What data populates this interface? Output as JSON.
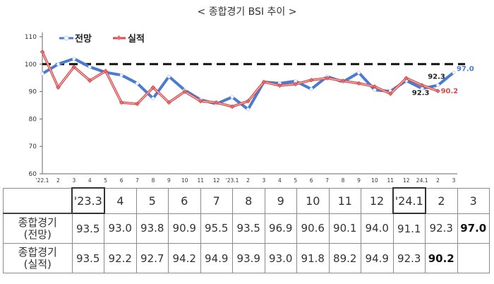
{
  "title": "< 종합경기 BSI 추이 >",
  "chart_data": {
    "type": "line",
    "legend": {
      "placement": "top-left",
      "items": [
        "전망",
        "실적"
      ]
    },
    "yticks": [
      "110",
      "100",
      "90",
      "80",
      "70",
      "60"
    ],
    "ylim": [
      60,
      110
    ],
    "reference_line": 100,
    "x_labels": [
      "'22.1",
      "2",
      "3",
      "4",
      "5",
      "6",
      "7",
      "8",
      "9",
      "10",
      "11",
      "12",
      "'23.1",
      "2",
      "3",
      "4",
      "5",
      "6",
      "7",
      "8",
      "9",
      "10",
      "11",
      "12",
      "24.1",
      "2",
      "3"
    ],
    "series": [
      {
        "name": "전망",
        "color": "#4a7bd0",
        "values": [
          96.5,
          100.0,
          102.0,
          99.0,
          97.0,
          96.0,
          93.0,
          87.5,
          95.5,
          90.5,
          87.0,
          85.5,
          88.0,
          83.5,
          93.5,
          93.0,
          93.8,
          90.9,
          95.5,
          93.5,
          96.9,
          90.6,
          90.1,
          94.0,
          91.1,
          92.3,
          97.0
        ]
      },
      {
        "name": "실적",
        "color": "#d94a4a",
        "values": [
          104.5,
          91.5,
          99.0,
          94.0,
          97.5,
          86.0,
          85.5,
          91.5,
          86.0,
          90.0,
          86.5,
          86.0,
          84.5,
          86.5,
          93.5,
          92.2,
          92.7,
          94.2,
          94.9,
          93.9,
          93.0,
          91.8,
          89.2,
          94.9,
          92.3,
          90.2
        ]
      }
    ],
    "data_labels": [
      {
        "text": "97.0",
        "series": "전망",
        "index": 26,
        "color": "#4a7bd0"
      },
      {
        "text": "92.3",
        "series": "전망",
        "index": 25,
        "color": "#222222"
      },
      {
        "text": "92.3",
        "series": "실적",
        "index": 24,
        "color": "#222222"
      },
      {
        "text": "90.2",
        "series": "실적",
        "index": 25,
        "color": "#d94a4a"
      }
    ]
  },
  "table": {
    "header": [
      "'23.3",
      "4",
      "5",
      "6",
      "7",
      "8",
      "9",
      "10",
      "11",
      "12",
      "'24.1",
      "2",
      "3"
    ],
    "rows": [
      {
        "label_line1": "종합경기",
        "label_line2": "(전망)",
        "values": [
          "93.5",
          "93.0",
          "93.8",
          "90.9",
          "95.5",
          "93.5",
          "96.9",
          "90.6",
          "90.1",
          "94.0",
          "91.1",
          "92.3",
          "97.0"
        ]
      },
      {
        "label_line1": "종합경기",
        "label_line2": "(실적)",
        "values": [
          "93.5",
          "92.2",
          "92.7",
          "94.2",
          "94.9",
          "93.9",
          "93.0",
          "91.8",
          "89.2",
          "94.9",
          "92.3",
          "90.2",
          ""
        ]
      }
    ]
  }
}
